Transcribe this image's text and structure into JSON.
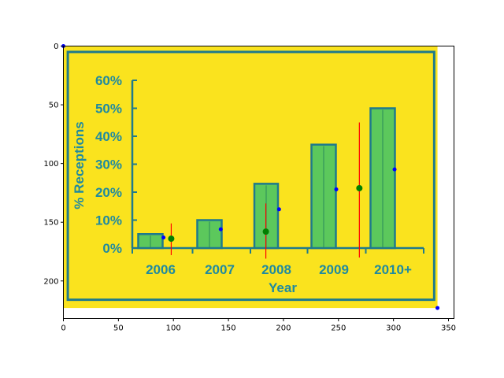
{
  "chart_data": {
    "type": "bar",
    "title": "",
    "xlabel": "Year",
    "ylabel": "% Receptions",
    "categories": [
      "2006",
      "2007",
      "2008",
      "2009",
      "2010+"
    ],
    "values": [
      5,
      10,
      23,
      37,
      50
    ],
    "ylim": [
      0,
      60
    ],
    "yticks": [
      "0%",
      "10%",
      "20%",
      "30%",
      "40%",
      "50%",
      "60%"
    ],
    "outer_axes": {
      "xlim": [
        0,
        355
      ],
      "ylim": [
        232,
        0
      ],
      "xticks": [
        "0",
        "50",
        "100",
        "150",
        "200",
        "250",
        "300",
        "350"
      ],
      "yticks": [
        "0",
        "50",
        "100",
        "150",
        "200"
      ]
    },
    "overlay_points": {
      "blue": [
        [
          0,
          0
        ],
        [
          91,
          163
        ],
        [
          143,
          156
        ],
        [
          196,
          139
        ],
        [
          248,
          122
        ],
        [
          301,
          105
        ],
        [
          340,
          223
        ]
      ],
      "green": [
        [
          98,
          164
        ],
        [
          184,
          158
        ],
        [
          269,
          121
        ]
      ]
    },
    "overlay_lines_red": [
      {
        "x": 98,
        "y1": 151,
        "y2": 178
      },
      {
        "x": 184,
        "y1": 134,
        "y2": 181
      },
      {
        "x": 269,
        "y1": 65,
        "y2": 180
      }
    ],
    "colors": {
      "background": "#fae31e",
      "frame": "#1f7a8c",
      "bar_fill": "#5cc85c",
      "bar_edge": "#1f7a8c",
      "label_text": "#1f8aa0",
      "point_blue": "#0000ff",
      "point_green": "#008000",
      "line_red": "#ff0000"
    }
  }
}
